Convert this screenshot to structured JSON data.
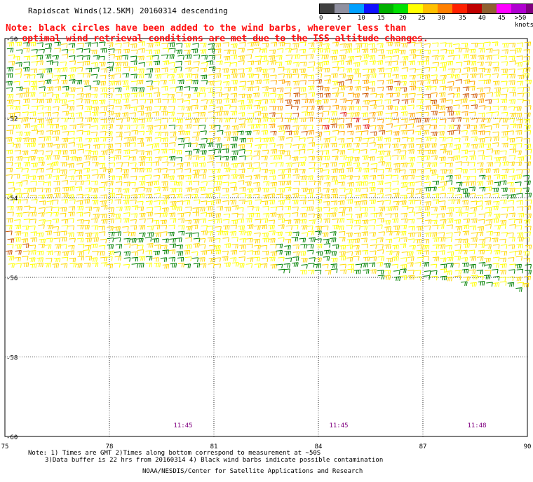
{
  "header": {
    "title": "Rapidscat Winds(12.5KM) 20160314 descending",
    "note_line1": "Note: black circles have been added to the wind barbs, wherever less than",
    "note_line2": "optimal wind retrieval conditions are met due to the ISS altitude changes."
  },
  "colorbar": {
    "labels": [
      "0",
      "5",
      "10",
      "15",
      "20",
      "25",
      "30",
      "35",
      "40",
      "45",
      ">50 knots"
    ],
    "colors": [
      "#404040",
      "#9090a0",
      "#00a0ff",
      "#1010ff",
      "#00b000",
      "#00e000",
      "#ffff00",
      "#ffc000",
      "#ff8000",
      "#ff2000",
      "#c00000",
      "#906030",
      "#ff00ff",
      "#b000d0",
      "#800080"
    ]
  },
  "axes": {
    "lat_labels": [
      "-50",
      "-52",
      "-54",
      "-56",
      "-58",
      "-60"
    ],
    "lon_labels": [
      "75",
      "78",
      "81",
      "84",
      "87",
      "90"
    ]
  },
  "times": [
    "11:45",
    "11:45",
    "11:48"
  ],
  "footer": {
    "line1": "Note: 1) Times are GMT 2)Times along bottom correspond to measurement at ~50S",
    "line2": "3)Data buffer is 22 hrs from 20160314 4) Black wind barbs indicate possible contamination",
    "credit": "NOAA/NESDIS/Center for Satellite Applications and Research"
  },
  "palette": {
    "yellow": "#ffd700",
    "yellow_light": "#ffff00",
    "orange": "#ffa500",
    "dark_orange": "#cc5500",
    "red": "#dd0000",
    "green": "#008000",
    "blue": "#0000ff",
    "time_color": "#800080"
  }
}
